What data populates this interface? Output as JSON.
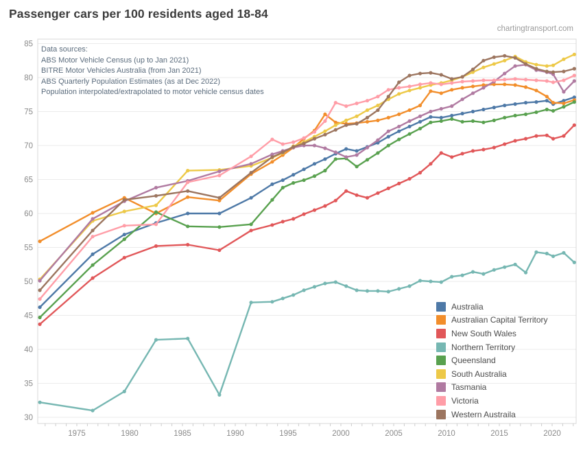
{
  "header": {
    "title": "Passenger cars per 100 residents aged 18-84",
    "watermark": "chartingtransport.com"
  },
  "annotation": {
    "lines": [
      "Data sources:",
      "ABS Motor Vehicle Census (up to Jan 2021)",
      "BITRE Motor Vehicles Australia (from Jan 2021)",
      "ABS Quarterly Population Estimates (as at Dec 2022)",
      "Population interpolated/extrapolated to motor vehicle census dates"
    ]
  },
  "chart_data": {
    "type": "line",
    "title": "Passenger cars per 100 residents aged 18-84",
    "xlabel": "",
    "ylabel": "",
    "ylim": [
      30,
      85
    ],
    "grid": "horizontal",
    "legend_position": "right-bottom",
    "xticks": [
      1975,
      1980,
      1985,
      1990,
      1995,
      2000,
      2005,
      2010,
      2015,
      2020
    ],
    "yticks": [
      30,
      35,
      40,
      45,
      50,
      55,
      60,
      65,
      70,
      75,
      80,
      85
    ],
    "x": [
      1971,
      1976,
      1979,
      1982,
      1985,
      1988,
      1991,
      1993,
      1994,
      1995,
      1996,
      1997,
      1998,
      1999,
      2000,
      2001,
      2002,
      2003,
      2004,
      2005,
      2006,
      2007,
      2008,
      2009,
      2010,
      2011,
      2012,
      2013,
      2014,
      2015,
      2016,
      2017,
      2018,
      2019,
      2020,
      2021,
      2022
    ],
    "series": [
      {
        "name": "Australia",
        "color": "#4e79a7",
        "values": [
          46.2,
          54.0,
          56.9,
          58.6,
          60.0,
          60.0,
          62.3,
          64.3,
          64.9,
          65.7,
          66.5,
          67.3,
          68.0,
          68.8,
          69.5,
          69.2,
          69.8,
          70.4,
          71.3,
          72.1,
          72.8,
          73.5,
          74.2,
          74.1,
          74.4,
          74.7,
          75.0,
          75.3,
          75.6,
          75.9,
          76.1,
          76.3,
          76.4,
          76.6,
          76.1,
          76.6,
          77.1
        ]
      },
      {
        "name": "Australian Capital Territory",
        "color": "#f28e2b",
        "values": [
          55.9,
          60.1,
          62.3,
          60.0,
          62.4,
          61.9,
          65.8,
          67.6,
          68.6,
          69.7,
          71.0,
          72.2,
          74.6,
          73.4,
          73.2,
          73.3,
          73.5,
          73.7,
          74.1,
          74.6,
          75.2,
          75.9,
          78.0,
          77.7,
          78.2,
          78.5,
          78.7,
          78.9,
          79.0,
          79.0,
          78.9,
          78.6,
          78.1,
          77.2,
          76.3,
          76.2,
          76.7
        ]
      },
      {
        "name": "New South Wales",
        "color": "#e15759",
        "values": [
          43.7,
          50.5,
          53.5,
          55.2,
          55.4,
          54.6,
          57.5,
          58.3,
          58.8,
          59.2,
          59.9,
          60.5,
          61.1,
          61.9,
          63.3,
          62.7,
          62.3,
          63.0,
          63.7,
          64.4,
          65.1,
          66.0,
          67.3,
          68.9,
          68.3,
          68.8,
          69.2,
          69.4,
          69.7,
          70.2,
          70.7,
          71.0,
          71.4,
          71.5,
          71.0,
          71.4,
          73.0
        ]
      },
      {
        "name": "Northern Territory",
        "color": "#76b7b2",
        "values": [
          32.2,
          31.0,
          33.8,
          41.4,
          41.6,
          33.3,
          46.9,
          47.0,
          47.5,
          48.0,
          48.7,
          49.2,
          49.7,
          49.9,
          49.3,
          48.7,
          48.6,
          48.6,
          48.5,
          48.9,
          49.3,
          50.1,
          50.0,
          49.9,
          50.7,
          50.9,
          51.4,
          51.1,
          51.7,
          52.1,
          52.5,
          51.3,
          54.3,
          54.1,
          53.7,
          54.2,
          52.8
        ]
      },
      {
        "name": "Queensland",
        "color": "#59a14f",
        "values": [
          44.7,
          52.4,
          56.2,
          60.2,
          58.1,
          58.0,
          58.4,
          62.0,
          63.8,
          64.5,
          64.9,
          65.5,
          66.3,
          68.0,
          68.1,
          66.9,
          67.9,
          68.9,
          70.0,
          70.9,
          71.7,
          72.5,
          73.4,
          73.6,
          73.9,
          73.5,
          73.6,
          73.4,
          73.7,
          74.1,
          74.4,
          74.6,
          74.9,
          75.3,
          75.1,
          75.7,
          76.4
        ]
      },
      {
        "name": "South Australia",
        "color": "#edc948",
        "values": [
          50.3,
          58.9,
          60.3,
          61.2,
          66.3,
          66.4,
          67.0,
          68.2,
          68.9,
          69.9,
          70.5,
          71.3,
          72.1,
          73.0,
          73.7,
          74.3,
          75.2,
          75.9,
          76.8,
          77.6,
          78.1,
          78.5,
          78.9,
          79.2,
          79.6,
          80.1,
          80.8,
          81.5,
          82.0,
          82.5,
          83.1,
          82.3,
          81.9,
          81.7,
          81.8,
          82.7,
          83.4
        ]
      },
      {
        "name": "Tasmania",
        "color": "#b07aa1",
        "values": [
          50.1,
          59.2,
          61.8,
          63.8,
          64.8,
          66.2,
          67.3,
          68.7,
          69.2,
          69.7,
          70.0,
          70.0,
          69.6,
          69.0,
          68.3,
          68.6,
          69.7,
          70.8,
          72.1,
          72.8,
          73.6,
          74.3,
          75.0,
          75.4,
          75.8,
          76.8,
          77.7,
          78.5,
          79.4,
          80.6,
          81.7,
          81.9,
          81.1,
          80.8,
          80.5,
          77.9,
          79.5
        ]
      },
      {
        "name": "Victoria",
        "color": "#ff9da7",
        "values": [
          47.4,
          56.6,
          58.2,
          58.4,
          64.6,
          65.6,
          68.4,
          70.9,
          70.2,
          70.5,
          71.1,
          72.0,
          73.6,
          76.3,
          75.8,
          76.2,
          76.6,
          77.2,
          78.2,
          78.5,
          78.7,
          79.0,
          79.2,
          79.0,
          79.2,
          79.4,
          79.5,
          79.6,
          79.6,
          79.7,
          79.8,
          79.7,
          79.6,
          79.5,
          79.3,
          79.6,
          80.3
        ]
      },
      {
        "name": "Western Austraila",
        "color": "#9c755f",
        "values": [
          48.7,
          57.5,
          62.0,
          62.6,
          63.3,
          62.3,
          66.0,
          68.3,
          69.0,
          69.8,
          70.3,
          71.0,
          71.6,
          72.3,
          73.0,
          73.2,
          74.1,
          75.2,
          77.2,
          79.3,
          80.3,
          80.6,
          80.7,
          80.4,
          79.8,
          80.1,
          81.2,
          82.5,
          83.0,
          83.2,
          82.9,
          82.0,
          81.3,
          80.9,
          80.8,
          80.9,
          81.3
        ]
      }
    ]
  },
  "style": {
    "grid_color": "#ebebeb",
    "border_color": "#d8d8d8",
    "tick_color": "#cccccc",
    "tick_label_color": "#8a8a8a"
  }
}
